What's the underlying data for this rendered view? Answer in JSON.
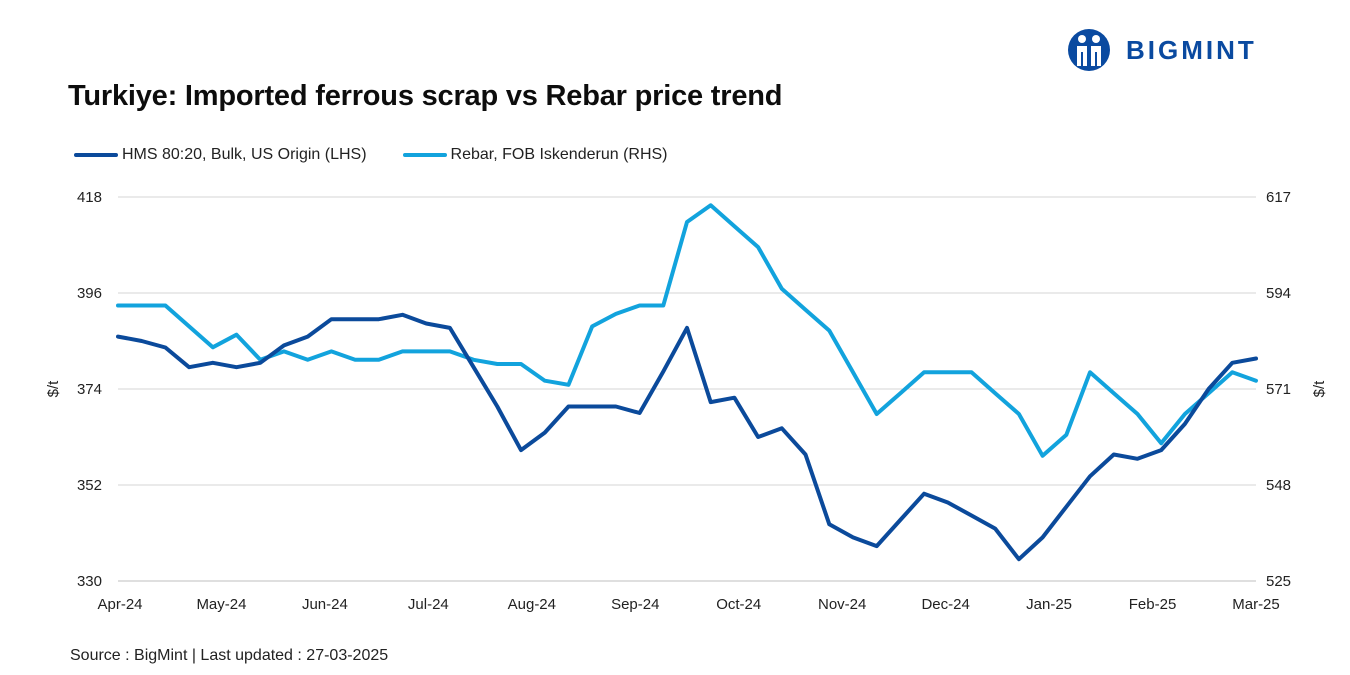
{
  "header": {
    "title": "Turkiye: Imported ferrous scrap vs Rebar price trend",
    "logo_text": "BIGMINT"
  },
  "footer": {
    "source": "Source : BigMint | Last updated : 27-03-2025"
  },
  "colors": {
    "hms": "#0b4a9b",
    "rebar": "#12a3dd",
    "grid": "#d4d4d4",
    "axis": "#bfbfbf",
    "logo": "#0a4aa0"
  },
  "chart_data": {
    "type": "line",
    "title": "Turkiye: Imported ferrous scrap vs Rebar price trend",
    "x_tick_labels": [
      "Apr-24",
      "May-24",
      "Jun-24",
      "Jul-24",
      "Aug-24",
      "Sep-24",
      "Oct-24",
      "Nov-24",
      "Dec-24",
      "Jan-25",
      "Feb-25",
      "Mar-25"
    ],
    "grid": true,
    "legend": "top-left",
    "left_axis": {
      "label": "$/t",
      "min": 330,
      "max": 418,
      "ticks": [
        330,
        352,
        374,
        396,
        418
      ]
    },
    "right_axis": {
      "label": "$/t",
      "min": 525,
      "max": 617,
      "ticks": [
        525,
        548,
        571,
        594,
        617
      ]
    },
    "series": [
      {
        "name": "HMS 80:20, Bulk, US Origin (LHS)",
        "axis": "left",
        "values": [
          386,
          385,
          383.5,
          379,
          380,
          379,
          380,
          384,
          386,
          390,
          390,
          390,
          391,
          389,
          388,
          379,
          370,
          360,
          364,
          370,
          370,
          370,
          368.5,
          378,
          388,
          371,
          372,
          363,
          365,
          359,
          343,
          340,
          338,
          344,
          350,
          348,
          345,
          342,
          335,
          340,
          347,
          354,
          359,
          358,
          360,
          366,
          374,
          380,
          381
        ]
      },
      {
        "name": "Rebar, FOB Iskenderun (RHS)",
        "axis": "right",
        "values": [
          591,
          591,
          591,
          586,
          581,
          584,
          578,
          580,
          578,
          580,
          578,
          578,
          580,
          580,
          580,
          578,
          577,
          577,
          573,
          572,
          586,
          589,
          591,
          591,
          611,
          615,
          610,
          605,
          595,
          590,
          585,
          575,
          565,
          570,
          575,
          575,
          575,
          570,
          565,
          555,
          560,
          575,
          570,
          565,
          558,
          565,
          570,
          575,
          573
        ]
      }
    ]
  }
}
